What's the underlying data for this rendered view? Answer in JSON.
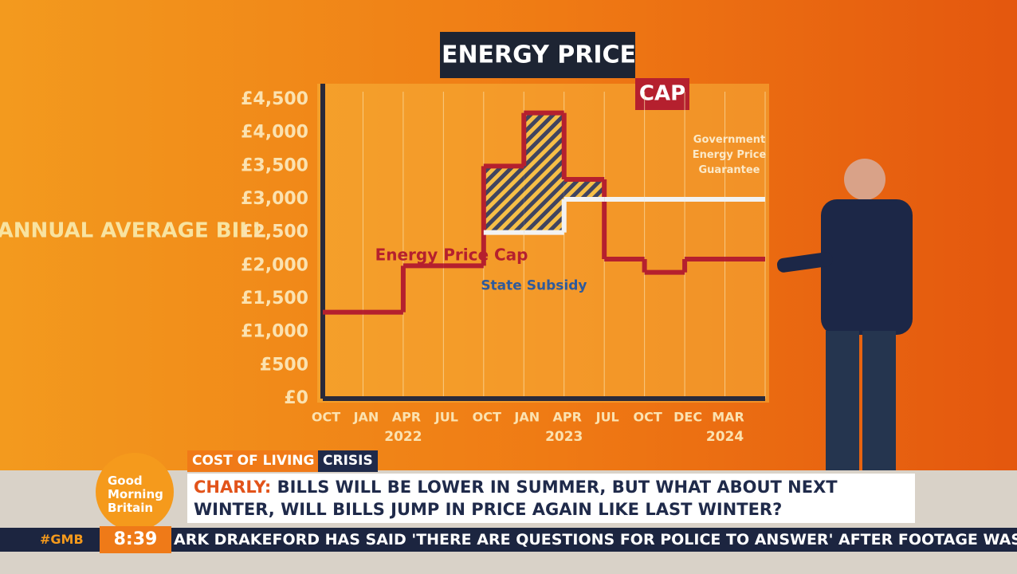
{
  "chart_data": {
    "type": "step-line",
    "title": "ENERGY PRICE",
    "title_highlight": "CAP",
    "y_axis_title": "ANNUAL AVERAGE BILL",
    "categories": [
      "OCT",
      "JAN",
      "APR",
      "JUL",
      "OCT",
      "JAN",
      "APR",
      "JUL",
      "OCT",
      "DEC",
      "MAR"
    ],
    "year_labels": [
      "2022",
      "2023",
      "2024"
    ],
    "series": [
      {
        "name": "Energy Price Cap",
        "color": "#b5202e",
        "values": [
          1300,
          1300,
          2000,
          2000,
          3500,
          4300,
          3300,
          2100,
          1900,
          2100,
          2100
        ]
      },
      {
        "name": "Government Energy Price Guarantee",
        "color": "#f2f2f2",
        "values": [
          null,
          null,
          null,
          null,
          2500,
          2500,
          3000,
          3000,
          3000,
          3000,
          3000
        ]
      }
    ],
    "annotation": "State Subsidy",
    "ylim": [
      0,
      4500
    ],
    "yticks": [
      {
        "value": 0,
        "label": "£0"
      },
      {
        "value": 500,
        "label": "£500"
      },
      {
        "value": 1000,
        "label": "£1,000"
      },
      {
        "value": 1500,
        "label": "£1,500"
      },
      {
        "value": 2000,
        "label": "£2,000"
      },
      {
        "value": 2500,
        "label": "£2,500"
      },
      {
        "value": 3000,
        "label": "£3,000"
      },
      {
        "value": 3500,
        "label": "£3,500"
      },
      {
        "value": 4000,
        "label": "£4,000"
      },
      {
        "value": 4500,
        "label": "£4,500"
      }
    ],
    "grid": true
  },
  "overlay": {
    "logo": [
      "Good",
      "Morning",
      "Britain"
    ],
    "strap": "COST OF LIVING",
    "strap_highlight": "CRISIS",
    "headline_speaker": "CHARLY:",
    "headline": [
      "BILLS WILL BE LOWER IN SUMMER, BUT WHAT ABOUT NEXT",
      "WINTER, WILL BILLS JUMP IN PRICE AGAIN LIKE LAST WINTER?"
    ],
    "hashtag": "#GMB",
    "clock": "8:39",
    "ticker": "ARK DRAKEFORD HAS SAID 'THERE ARE QUESTIONS FOR POLICE TO ANSWER' AFTER FOOTAGE WAS REL"
  }
}
